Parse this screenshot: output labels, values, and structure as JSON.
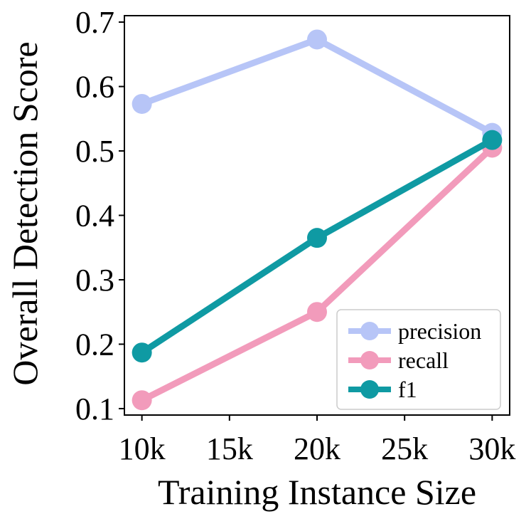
{
  "chart_data": {
    "type": "line",
    "xlabel": "Training Instance Size",
    "ylabel": "Overall Detection Score",
    "x": [
      10000,
      20000,
      30000
    ],
    "xlim": [
      9000,
      31000
    ],
    "ylim": [
      0.09,
      0.71
    ],
    "xticks": [
      10000,
      15000,
      20000,
      25000,
      30000
    ],
    "xtick_labels": [
      "10k",
      "15k",
      "20k",
      "25k",
      "30k"
    ],
    "yticks": [
      0.1,
      0.2,
      0.3,
      0.4,
      0.5,
      0.6,
      0.7
    ],
    "ytick_labels": [
      "0.1",
      "0.2",
      "0.3",
      "0.4",
      "0.5",
      "0.6",
      "0.7"
    ],
    "grid": false,
    "legend_position": "lower-right",
    "series": [
      {
        "name": "precision",
        "values": [
          0.573,
          0.673,
          0.528
        ],
        "color": "#b7c5f7"
      },
      {
        "name": "recall",
        "values": [
          0.113,
          0.25,
          0.505
        ],
        "color": "#f29bbb"
      },
      {
        "name": "f1",
        "values": [
          0.187,
          0.365,
          0.517
        ],
        "color": "#0f9aa3"
      }
    ]
  }
}
